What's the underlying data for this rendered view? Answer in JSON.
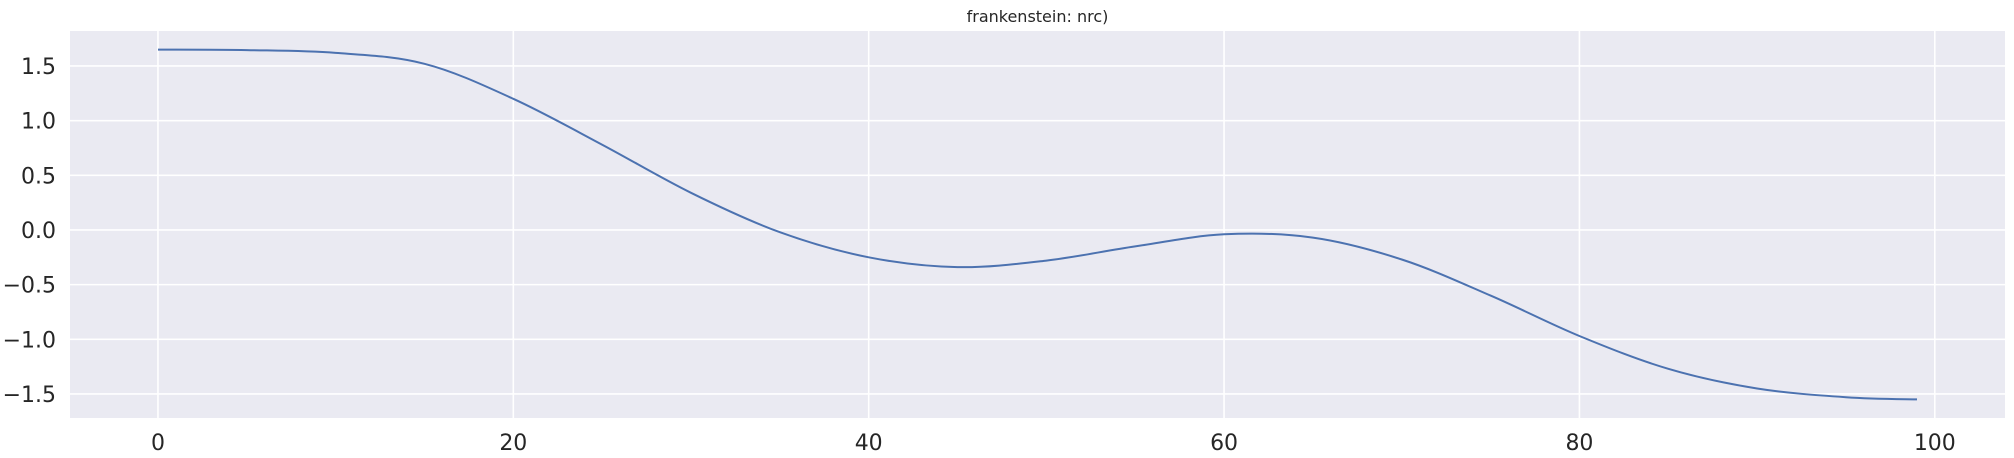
{
  "chart_data": {
    "type": "line",
    "title": "frankenstein: nrc)",
    "xlabel": "",
    "ylabel": "",
    "xlim": [
      -4.95,
      103.95
    ],
    "ylim": [
      -1.72,
      1.82
    ],
    "x_ticks": [
      0,
      20,
      40,
      60,
      80,
      100
    ],
    "x_tick_labels": [
      "0",
      "20",
      "40",
      "60",
      "80",
      "100"
    ],
    "y_ticks": [
      1.5,
      1.0,
      0.5,
      0.0,
      -0.5,
      -1.0,
      -1.5
    ],
    "y_tick_labels": [
      "1.5",
      "1.0",
      "0.5",
      "0.0",
      "−0.5",
      "−1.0",
      "−1.5"
    ],
    "grid": true,
    "legend": "none",
    "colors": {
      "background": "#eaeaf2",
      "grid": "#ffffff",
      "line": "#4c72b0"
    },
    "series": [
      {
        "x": [
          0,
          5,
          10,
          15,
          20,
          25,
          30,
          35,
          40,
          45,
          50,
          55,
          60,
          65,
          70,
          75,
          80,
          85,
          90,
          95,
          99
        ],
        "y": [
          1.65,
          1.645,
          1.62,
          1.52,
          1.2,
          0.78,
          0.34,
          -0.02,
          -0.25,
          -0.34,
          -0.28,
          -0.15,
          -0.04,
          -0.07,
          -0.27,
          -0.6,
          -0.97,
          -1.27,
          -1.45,
          -1.53,
          -1.55
        ]
      }
    ]
  }
}
